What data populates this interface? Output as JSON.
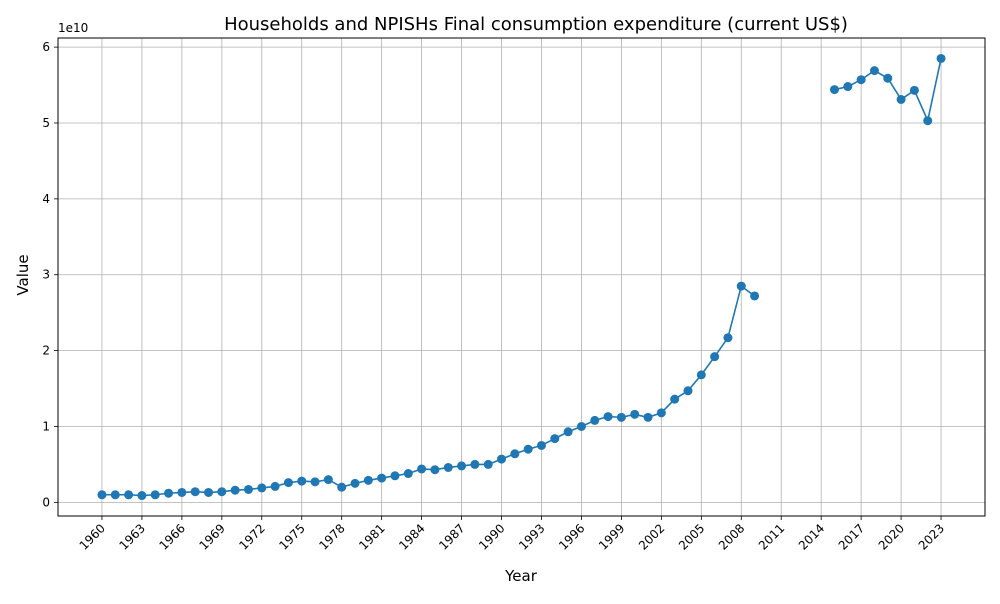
{
  "chart_data": {
    "type": "line",
    "title": "Households and NPISHs Final consumption expenditure (current US$)",
    "xlabel": "Year",
    "ylabel": "Value",
    "y_offset_label": "1e10",
    "y_scale_exponent": 10,
    "xlim": [
      1956.7,
      2026.3
    ],
    "ylim": [
      -0.18,
      6.12
    ],
    "x_ticks": [
      1960,
      1963,
      1966,
      1969,
      1972,
      1975,
      1978,
      1981,
      1984,
      1987,
      1990,
      1993,
      1996,
      1999,
      2002,
      2005,
      2008,
      2011,
      2014,
      2017,
      2020,
      2023
    ],
    "x_tick_labels": [
      "1960",
      "1963",
      "1966",
      "1969",
      "1972",
      "1975",
      "1978",
      "1981",
      "1984",
      "1987",
      "1990",
      "1993",
      "1996",
      "1999",
      "2002",
      "2005",
      "2008",
      "2011",
      "2014",
      "2017",
      "2020",
      "2023"
    ],
    "y_ticks": [
      0,
      1,
      2,
      3,
      4,
      5,
      6
    ],
    "y_tick_labels": [
      "0",
      "1",
      "2",
      "3",
      "4",
      "5",
      "6"
    ],
    "grid": true,
    "color": "#1f77b4",
    "series": [
      {
        "x": [
          1960,
          1961,
          1962,
          1963,
          1964,
          1965,
          1966,
          1967,
          1968,
          1969,
          1970,
          1971,
          1972,
          1973,
          1974,
          1975,
          1976,
          1977,
          1978,
          1979,
          1980,
          1981,
          1982,
          1983,
          1984,
          1985,
          1986,
          1987,
          1988,
          1989,
          1990,
          1991,
          1992,
          1993,
          1994,
          1995,
          1996,
          1997,
          1998,
          1999,
          2000,
          2001,
          2002,
          2003,
          2004,
          2005,
          2006,
          2007,
          2008,
          2009,
          2010,
          2011,
          2012,
          2013,
          2014,
          2015,
          2016,
          2017,
          2018,
          2019,
          2020,
          2021,
          2022,
          2023
        ],
        "y": [
          0.1,
          0.1,
          0.1,
          0.09,
          0.1,
          0.12,
          0.13,
          0.14,
          0.13,
          0.14,
          0.16,
          0.17,
          0.19,
          0.21,
          0.26,
          0.28,
          0.27,
          0.3,
          0.2,
          0.25,
          0.29,
          0.32,
          0.35,
          0.38,
          0.44,
          0.43,
          0.46,
          0.48,
          0.5,
          0.5,
          0.57,
          0.64,
          0.7,
          0.75,
          0.84,
          0.93,
          1.0,
          1.08,
          1.13,
          1.12,
          1.16,
          1.12,
          1.18,
          1.36,
          1.47,
          1.68,
          1.92,
          2.17,
          2.85,
          2.72,
          null,
          null,
          null,
          null,
          null,
          5.44,
          5.48,
          5.57,
          5.69,
          5.59,
          5.31,
          5.43,
          5.03,
          5.85
        ]
      }
    ]
  }
}
